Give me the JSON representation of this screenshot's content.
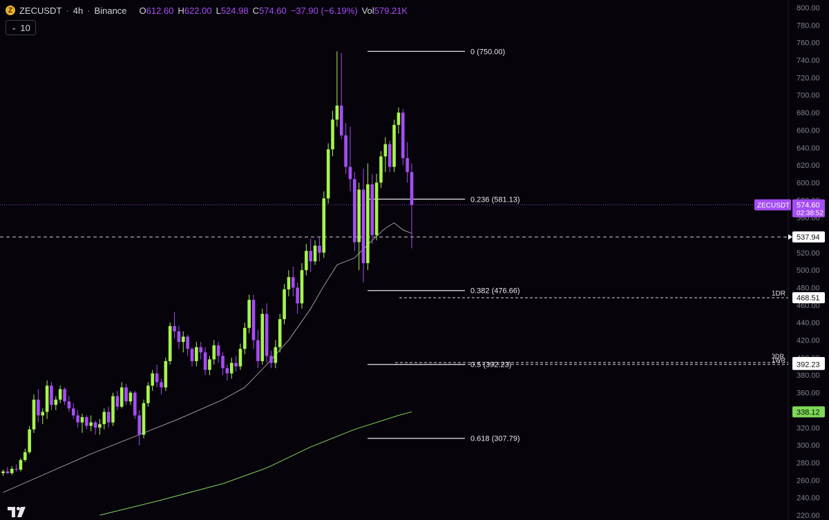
{
  "header": {
    "symbol": "ZECUSDT",
    "interval": "4h",
    "exchange": "Binance",
    "open_label": "O",
    "open": "612.60",
    "high_label": "H",
    "high": "622.00",
    "low_label": "L",
    "low": "524.98",
    "close_label": "C",
    "close": "574.60",
    "change": "−37.90 (−6.19%)",
    "volume_label": "Vol",
    "volume": "579.21K",
    "indicator_value": "10",
    "coin_glyph": "Z"
  },
  "colors": {
    "background": "#07030b",
    "up": "#a6f54c",
    "down": "#a64df5",
    "ma_short": "#9a9aa0",
    "ma_long": "#7ed957",
    "axis_text": "#7f8390"
  },
  "chart_data": {
    "type": "candlestick",
    "ylim": [
      220,
      800
    ],
    "y_ticks": [
      "220.00",
      "240.00",
      "260.00",
      "280.00",
      "300.00",
      "320.00",
      "340.00",
      "360.00",
      "380.00",
      "400.00",
      "420.00",
      "440.00",
      "460.00",
      "480.00",
      "500.00",
      "520.00",
      "540.00",
      "560.00",
      "580.00",
      "600.00",
      "620.00",
      "640.00",
      "660.00",
      "680.00",
      "700.00",
      "720.00",
      "740.00",
      "760.00",
      "780.00",
      "800.00"
    ],
    "candles": [
      [
        268,
        272,
        265,
        270
      ],
      [
        270,
        275,
        267,
        268
      ],
      [
        268,
        276,
        266,
        273
      ],
      [
        273,
        278,
        270,
        272
      ],
      [
        272,
        285,
        270,
        283
      ],
      [
        283,
        296,
        281,
        292
      ],
      [
        292,
        322,
        290,
        318
      ],
      [
        318,
        358,
        314,
        352
      ],
      [
        352,
        364,
        326,
        334
      ],
      [
        334,
        342,
        324,
        338
      ],
      [
        338,
        374,
        330,
        368
      ],
      [
        368,
        372,
        340,
        346
      ],
      [
        346,
        356,
        340,
        352
      ],
      [
        352,
        368,
        348,
        364
      ],
      [
        364,
        366,
        346,
        350
      ],
      [
        350,
        356,
        338,
        342
      ],
      [
        342,
        348,
        330,
        334
      ],
      [
        334,
        340,
        320,
        326
      ],
      [
        326,
        336,
        314,
        332
      ],
      [
        332,
        334,
        318,
        322
      ],
      [
        322,
        334,
        316,
        326
      ],
      [
        326,
        328,
        312,
        320
      ],
      [
        320,
        330,
        312,
        324
      ],
      [
        324,
        342,
        318,
        338
      ],
      [
        338,
        344,
        320,
        326
      ],
      [
        326,
        360,
        322,
        356
      ],
      [
        356,
        362,
        340,
        344
      ],
      [
        344,
        372,
        342,
        366
      ],
      [
        366,
        370,
        346,
        350
      ],
      [
        350,
        362,
        346,
        360
      ],
      [
        360,
        362,
        330,
        334
      ],
      [
        334,
        340,
        300,
        312
      ],
      [
        312,
        352,
        308,
        348
      ],
      [
        348,
        372,
        344,
        368
      ],
      [
        368,
        386,
        362,
        382
      ],
      [
        382,
        392,
        366,
        372
      ],
      [
        372,
        376,
        358,
        366
      ],
      [
        366,
        400,
        362,
        396
      ],
      [
        396,
        440,
        392,
        436
      ],
      [
        436,
        452,
        422,
        430
      ],
      [
        430,
        436,
        410,
        418
      ],
      [
        418,
        430,
        406,
        424
      ],
      [
        424,
        426,
        402,
        410
      ],
      [
        410,
        412,
        390,
        396
      ],
      [
        396,
        418,
        390,
        412
      ],
      [
        412,
        418,
        398,
        406
      ],
      [
        406,
        412,
        380,
        386
      ],
      [
        386,
        402,
        380,
        398
      ],
      [
        398,
        420,
        392,
        414
      ],
      [
        414,
        418,
        394,
        402
      ],
      [
        402,
        406,
        380,
        388
      ],
      [
        388,
        392,
        374,
        382
      ],
      [
        382,
        400,
        376,
        394
      ],
      [
        394,
        402,
        384,
        390
      ],
      [
        390,
        416,
        386,
        410
      ],
      [
        410,
        440,
        404,
        434
      ],
      [
        434,
        472,
        428,
        466
      ],
      [
        466,
        472,
        410,
        420
      ],
      [
        420,
        432,
        388,
        396
      ],
      [
        396,
        456,
        392,
        450
      ],
      [
        450,
        462,
        394,
        402
      ],
      [
        402,
        408,
        388,
        394
      ],
      [
        394,
        420,
        388,
        412
      ],
      [
        412,
        450,
        406,
        444
      ],
      [
        444,
        484,
        438,
        478
      ],
      [
        478,
        500,
        470,
        492
      ],
      [
        492,
        504,
        470,
        480
      ],
      [
        480,
        486,
        450,
        462
      ],
      [
        462,
        508,
        456,
        500
      ],
      [
        500,
        530,
        494,
        522
      ],
      [
        522,
        536,
        498,
        510
      ],
      [
        510,
        534,
        506,
        528
      ],
      [
        528,
        538,
        510,
        520
      ],
      [
        520,
        590,
        514,
        582
      ],
      [
        582,
        645,
        576,
        638
      ],
      [
        638,
        682,
        630,
        672
      ],
      [
        672,
        750,
        664,
        688
      ],
      [
        688,
        748,
        650,
        654
      ],
      [
        654,
        668,
        610,
        618
      ],
      [
        618,
        664,
        590,
        604
      ],
      [
        604,
        612,
        522,
        532
      ],
      [
        532,
        600,
        500,
        592
      ],
      [
        592,
        616,
        486,
        508
      ],
      [
        508,
        622,
        500,
        598
      ],
      [
        598,
        610,
        530,
        540
      ],
      [
        540,
        610,
        534,
        600
      ],
      [
        600,
        636,
        594,
        630
      ],
      [
        630,
        652,
        612,
        644
      ],
      [
        644,
        648,
        612,
        618
      ],
      [
        618,
        672,
        612,
        666
      ],
      [
        666,
        686,
        656,
        680
      ],
      [
        680,
        684,
        620,
        628
      ],
      [
        628,
        646,
        600,
        612
      ],
      [
        612,
        622,
        524.98,
        574.6
      ]
    ],
    "ma_short": [
      [
        0,
        246
      ],
      [
        10,
        268
      ],
      [
        20,
        290
      ],
      [
        30,
        310
      ],
      [
        40,
        330
      ],
      [
        50,
        352
      ],
      [
        55,
        366
      ],
      [
        60,
        392
      ],
      [
        65,
        420
      ],
      [
        70,
        456
      ],
      [
        73,
        482
      ],
      [
        76,
        506
      ],
      [
        80,
        514
      ],
      [
        84,
        534
      ],
      [
        87,
        548
      ],
      [
        89,
        554
      ],
      [
        91,
        546
      ],
      [
        93,
        542
      ]
    ],
    "ma_long": [
      [
        22,
        220
      ],
      [
        35,
        236
      ],
      [
        50,
        256
      ],
      [
        60,
        274
      ],
      [
        70,
        298
      ],
      [
        80,
        318
      ],
      [
        90,
        334
      ],
      [
        93,
        338.12
      ]
    ],
    "fib_levels": [
      {
        "ratio": "0",
        "price": 750.0,
        "label": "0 (750.00)"
      },
      {
        "ratio": "0.236",
        "price": 581.13,
        "label": "0.236 (581.13)"
      },
      {
        "ratio": "0.382",
        "price": 476.66,
        "label": "0.382 (476.66)"
      },
      {
        "ratio": "0.5",
        "price": 392.23,
        "label": "0.5 (392.23)"
      },
      {
        "ratio": "0.618",
        "price": 307.79,
        "label": "0.618 (307.79)"
      }
    ],
    "h_lines": [
      {
        "price": 537.94,
        "label": "537.94",
        "tag": ""
      },
      {
        "price": 468.51,
        "label": "468.51",
        "tag": "1DR"
      },
      {
        "price": 394.35,
        "label": "394.35",
        "tag": "3DR"
      },
      {
        "price": 392.23,
        "label": "392.23",
        "tag": "1WR"
      }
    ],
    "last_price": {
      "symbol": "ZECUSDT",
      "price": 574.6,
      "label": "574.60",
      "countdown": "02:38:52"
    },
    "ma_long_label": "338.12"
  }
}
